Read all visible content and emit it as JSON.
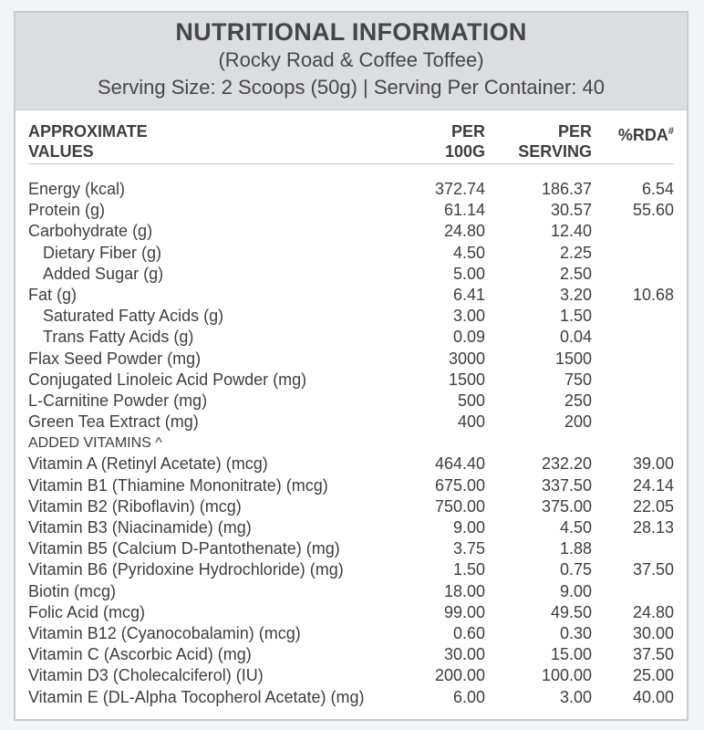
{
  "header": {
    "title": "NUTRITIONAL INFORMATION",
    "subtitle": "(Rocky Road & Coffee Toffee)",
    "serving": "Serving Size: 2 Scoops (50g)  |  Serving Per Container: 40"
  },
  "columns": {
    "name_line1": "APPROXIMATE",
    "name_line2": "VALUES",
    "per100_line1": "PER",
    "per100_line2": "100G",
    "perserv_line1": "PER",
    "perserv_line2": "SERVING",
    "rda": "%RDA",
    "rda_mark": "#"
  },
  "rows": [
    {
      "name": "Energy (kcal)",
      "per100": "372.74",
      "serving": "186.37",
      "rda": "6.54"
    },
    {
      "name": "Protein (g)",
      "per100": "61.14",
      "serving": "30.57",
      "rda": "55.60"
    },
    {
      "name": "Carbohydrate (g)",
      "per100": "24.80",
      "serving": "12.40",
      "rda": ""
    },
    {
      "name": "Dietary Fiber (g)",
      "per100": "4.50",
      "serving": "2.25",
      "rda": "",
      "sub": true
    },
    {
      "name": "Added Sugar (g)",
      "per100": "5.00",
      "serving": "2.50",
      "rda": "",
      "sub": true
    },
    {
      "name": "Fat (g)",
      "per100": "6.41",
      "serving": "3.20",
      "rda": "10.68"
    },
    {
      "name": "Saturated Fatty Acids (g)",
      "per100": "3.00",
      "serving": "1.50",
      "rda": "",
      "sub": true
    },
    {
      "name": "Trans Fatty Acids (g)",
      "per100": "0.09",
      "serving": "0.04",
      "rda": "",
      "sub": true
    },
    {
      "name": "Flax Seed Powder (mg)",
      "per100": "3000",
      "serving": "1500",
      "rda": ""
    },
    {
      "name": "Conjugated Linoleic Acid Powder (mg)",
      "per100": "1500",
      "serving": "750",
      "rda": ""
    },
    {
      "name": "L-Carnitine Powder (mg)",
      "per100": "500",
      "serving": "250",
      "rda": ""
    },
    {
      "name": "Green Tea Extract (mg)",
      "per100": "400",
      "serving": "200",
      "rda": ""
    },
    {
      "name": "ADDED VITAMINS ^",
      "per100": "",
      "serving": "",
      "rda": "",
      "section": true
    },
    {
      "name": "Vitamin A (Retinyl Acetate) (mcg)",
      "per100": "464.40",
      "serving": "232.20",
      "rda": "39.00"
    },
    {
      "name": "Vitamin B1 (Thiamine Mononitrate) (mcg)",
      "per100": "675.00",
      "serving": "337.50",
      "rda": "24.14"
    },
    {
      "name": "Vitamin B2 (Riboflavin) (mcg)",
      "per100": "750.00",
      "serving": "375.00",
      "rda": "22.05"
    },
    {
      "name": "Vitamin B3 (Niacinamide) (mg)",
      "per100": "9.00",
      "serving": "4.50",
      "rda": "28.13"
    },
    {
      "name": "Vitamin B5 (Calcium D-Pantothenate) (mg)",
      "per100": "3.75",
      "serving": "1.88",
      "rda": ""
    },
    {
      "name": "Vitamin B6 (Pyridoxine Hydrochloride) (mg)",
      "per100": "1.50",
      "serving": "0.75",
      "rda": "37.50"
    },
    {
      "name": "Biotin (mcg)",
      "per100": "18.00",
      "serving": "9.00",
      "rda": ""
    },
    {
      "name": "Folic Acid (mcg)",
      "per100": "99.00",
      "serving": "49.50",
      "rda": "24.80"
    },
    {
      "name": "Vitamin B12 (Cyanocobalamin) (mcg)",
      "per100": "0.60",
      "serving": "0.30",
      "rda": "30.00"
    },
    {
      "name": "Vitamin C (Ascorbic Acid) (mg)",
      "per100": "30.00",
      "serving": "15.00",
      "rda": "37.50"
    },
    {
      "name": "Vitamin D3 (Cholecalciferol) (IU)",
      "per100": "200.00",
      "serving": "100.00",
      "rda": "25.00"
    },
    {
      "name": "Vitamin E (DL-Alpha Tocopherol Acetate) (mg)",
      "per100": "6.00",
      "serving": "3.00",
      "rda": "40.00"
    }
  ]
}
